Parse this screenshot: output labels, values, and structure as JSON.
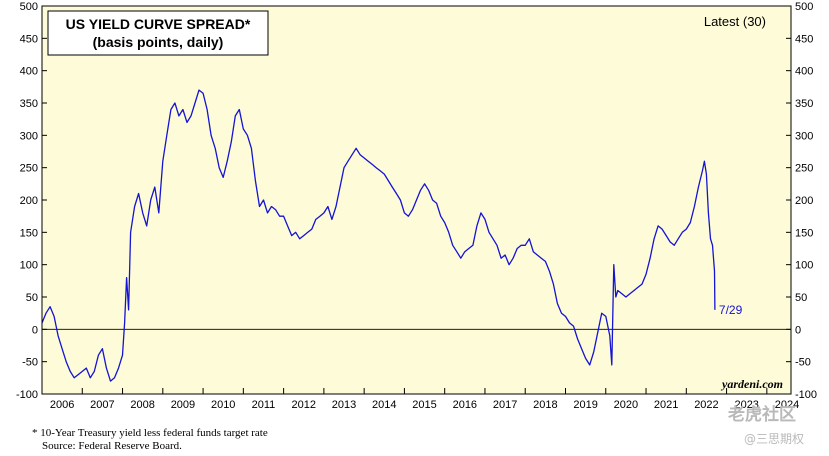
{
  "chart_data": {
    "type": "line",
    "title_line1": "US YIELD CURVE SPREAD*",
    "title_line2": "(basis points, daily)",
    "legend": "Latest (30)",
    "annotation_latest": "7/29",
    "source_credit": "yardeni.com",
    "ylim": [
      -100,
      500
    ],
    "y_ticks": [
      -100,
      -50,
      0,
      50,
      100,
      150,
      200,
      250,
      300,
      350,
      400,
      450,
      500
    ],
    "y_tick_labels": [
      "-100",
      "-50",
      "0",
      "50",
      "100",
      "150",
      "200",
      "250",
      "300",
      "350",
      "400",
      "450",
      "500"
    ],
    "x_range": [
      2006,
      2024.6
    ],
    "x_labels": [
      "2006",
      "2007",
      "2008",
      "2009",
      "2010",
      "2011",
      "2012",
      "2013",
      "2014",
      "2015",
      "2016",
      "2017",
      "2018",
      "2019",
      "2020",
      "2021",
      "2022",
      "2023",
      "2024"
    ],
    "series": [
      {
        "name": "US yield curve spread",
        "color": "#1414d2",
        "points": [
          [
            2006.0,
            10
          ],
          [
            2006.1,
            25
          ],
          [
            2006.2,
            35
          ],
          [
            2006.3,
            20
          ],
          [
            2006.4,
            -10
          ],
          [
            2006.5,
            -30
          ],
          [
            2006.6,
            -50
          ],
          [
            2006.7,
            -65
          ],
          [
            2006.8,
            -75
          ],
          [
            2006.9,
            -70
          ],
          [
            2007.0,
            -65
          ],
          [
            2007.1,
            -60
          ],
          [
            2007.2,
            -75
          ],
          [
            2007.3,
            -65
          ],
          [
            2007.4,
            -40
          ],
          [
            2007.5,
            -30
          ],
          [
            2007.6,
            -60
          ],
          [
            2007.7,
            -80
          ],
          [
            2007.8,
            -75
          ],
          [
            2007.9,
            -60
          ],
          [
            2008.0,
            -40
          ],
          [
            2008.05,
            10
          ],
          [
            2008.1,
            80
          ],
          [
            2008.15,
            30
          ],
          [
            2008.2,
            150
          ],
          [
            2008.3,
            190
          ],
          [
            2008.4,
            210
          ],
          [
            2008.5,
            180
          ],
          [
            2008.6,
            160
          ],
          [
            2008.7,
            200
          ],
          [
            2008.8,
            220
          ],
          [
            2008.9,
            180
          ],
          [
            2009.0,
            260
          ],
          [
            2009.1,
            300
          ],
          [
            2009.2,
            340
          ],
          [
            2009.3,
            350
          ],
          [
            2009.4,
            330
          ],
          [
            2009.5,
            340
          ],
          [
            2009.6,
            320
          ],
          [
            2009.7,
            330
          ],
          [
            2009.8,
            350
          ],
          [
            2009.9,
            370
          ],
          [
            2010.0,
            365
          ],
          [
            2010.1,
            340
          ],
          [
            2010.2,
            300
          ],
          [
            2010.3,
            280
          ],
          [
            2010.4,
            250
          ],
          [
            2010.5,
            235
          ],
          [
            2010.6,
            260
          ],
          [
            2010.7,
            290
          ],
          [
            2010.8,
            330
          ],
          [
            2010.9,
            340
          ],
          [
            2011.0,
            310
          ],
          [
            2011.1,
            300
          ],
          [
            2011.2,
            280
          ],
          [
            2011.3,
            230
          ],
          [
            2011.4,
            190
          ],
          [
            2011.5,
            200
          ],
          [
            2011.6,
            180
          ],
          [
            2011.7,
            190
          ],
          [
            2011.8,
            185
          ],
          [
            2011.9,
            175
          ],
          [
            2012.0,
            175
          ],
          [
            2012.1,
            160
          ],
          [
            2012.2,
            145
          ],
          [
            2012.3,
            150
          ],
          [
            2012.4,
            140
          ],
          [
            2012.5,
            145
          ],
          [
            2012.6,
            150
          ],
          [
            2012.7,
            155
          ],
          [
            2012.8,
            170
          ],
          [
            2012.9,
            175
          ],
          [
            2013.0,
            180
          ],
          [
            2013.1,
            190
          ],
          [
            2013.2,
            170
          ],
          [
            2013.3,
            190
          ],
          [
            2013.4,
            220
          ],
          [
            2013.5,
            250
          ],
          [
            2013.6,
            260
          ],
          [
            2013.7,
            270
          ],
          [
            2013.8,
            280
          ],
          [
            2013.9,
            270
          ],
          [
            2014.0,
            265
          ],
          [
            2014.1,
            260
          ],
          [
            2014.2,
            255
          ],
          [
            2014.3,
            250
          ],
          [
            2014.4,
            245
          ],
          [
            2014.5,
            240
          ],
          [
            2014.6,
            230
          ],
          [
            2014.7,
            220
          ],
          [
            2014.8,
            210
          ],
          [
            2014.9,
            200
          ],
          [
            2015.0,
            180
          ],
          [
            2015.1,
            175
          ],
          [
            2015.2,
            185
          ],
          [
            2015.3,
            200
          ],
          [
            2015.4,
            215
          ],
          [
            2015.5,
            225
          ],
          [
            2015.6,
            215
          ],
          [
            2015.7,
            200
          ],
          [
            2015.8,
            195
          ],
          [
            2015.9,
            175
          ],
          [
            2016.0,
            165
          ],
          [
            2016.1,
            150
          ],
          [
            2016.2,
            130
          ],
          [
            2016.3,
            120
          ],
          [
            2016.4,
            110
          ],
          [
            2016.5,
            120
          ],
          [
            2016.6,
            125
          ],
          [
            2016.7,
            130
          ],
          [
            2016.8,
            160
          ],
          [
            2016.9,
            180
          ],
          [
            2017.0,
            170
          ],
          [
            2017.1,
            150
          ],
          [
            2017.2,
            140
          ],
          [
            2017.3,
            130
          ],
          [
            2017.4,
            110
          ],
          [
            2017.5,
            115
          ],
          [
            2017.6,
            100
          ],
          [
            2017.7,
            110
          ],
          [
            2017.8,
            125
          ],
          [
            2017.9,
            130
          ],
          [
            2018.0,
            130
          ],
          [
            2018.1,
            140
          ],
          [
            2018.2,
            120
          ],
          [
            2018.3,
            115
          ],
          [
            2018.4,
            110
          ],
          [
            2018.5,
            105
          ],
          [
            2018.6,
            90
          ],
          [
            2018.7,
            70
          ],
          [
            2018.8,
            40
          ],
          [
            2018.9,
            25
          ],
          [
            2019.0,
            20
          ],
          [
            2019.1,
            10
          ],
          [
            2019.2,
            5
          ],
          [
            2019.3,
            -15
          ],
          [
            2019.4,
            -30
          ],
          [
            2019.5,
            -45
          ],
          [
            2019.6,
            -55
          ],
          [
            2019.7,
            -35
          ],
          [
            2019.8,
            -5
          ],
          [
            2019.9,
            25
          ],
          [
            2020.0,
            20
          ],
          [
            2020.1,
            -10
          ],
          [
            2020.15,
            -55
          ],
          [
            2020.2,
            100
          ],
          [
            2020.25,
            50
          ],
          [
            2020.3,
            60
          ],
          [
            2020.4,
            55
          ],
          [
            2020.5,
            50
          ],
          [
            2020.6,
            55
          ],
          [
            2020.7,
            60
          ],
          [
            2020.8,
            65
          ],
          [
            2020.9,
            70
          ],
          [
            2021.0,
            85
          ],
          [
            2021.1,
            110
          ],
          [
            2021.2,
            140
          ],
          [
            2021.3,
            160
          ],
          [
            2021.4,
            155
          ],
          [
            2021.5,
            145
          ],
          [
            2021.6,
            135
          ],
          [
            2021.7,
            130
          ],
          [
            2021.8,
            140
          ],
          [
            2021.9,
            150
          ],
          [
            2022.0,
            155
          ],
          [
            2022.1,
            165
          ],
          [
            2022.2,
            190
          ],
          [
            2022.3,
            220
          ],
          [
            2022.4,
            245
          ],
          [
            2022.45,
            260
          ],
          [
            2022.5,
            240
          ],
          [
            2022.55,
            180
          ],
          [
            2022.6,
            140
          ],
          [
            2022.65,
            130
          ],
          [
            2022.7,
            90
          ],
          [
            2022.71,
            30
          ]
        ]
      }
    ]
  },
  "footnotes": {
    "line1": "*   10-Year Treasury yield less federal funds target rate",
    "line2": "Source: Federal Reserve Board."
  },
  "watermark": {
    "line1": "老虎社区",
    "line2": "@三思期权"
  }
}
